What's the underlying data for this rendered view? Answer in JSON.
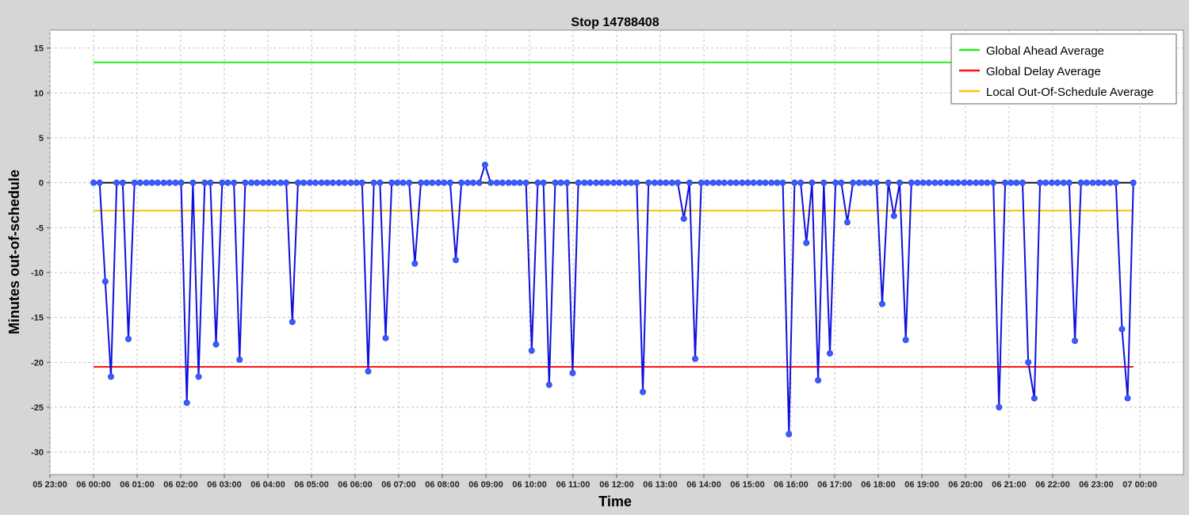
{
  "chart_data": {
    "type": "line",
    "title": "Stop 14788408",
    "xlabel": "Time",
    "ylabel": "Minutes out-of-schedule",
    "ylim": [
      -32.5,
      17
    ],
    "y_ticks": [
      15,
      10,
      5,
      0,
      -5,
      -10,
      -15,
      -20,
      -25,
      -30
    ],
    "y_tick_labels": [
      "15",
      "10",
      "5",
      "0",
      "-5",
      "-10",
      "-15",
      "-20",
      "-25",
      "-30"
    ],
    "x_range_hours": [
      -1.0,
      25.0
    ],
    "x_ticks": [
      "05 23:00",
      "06 00:00",
      "06 01:00",
      "06 02:00",
      "06 03:00",
      "06 04:00",
      "06 05:00",
      "06 06:00",
      "06 07:00",
      "06 08:00",
      "06 09:00",
      "06 10:00",
      "06 11:00",
      "06 12:00",
      "06 13:00",
      "06 14:00",
      "06 15:00",
      "06 16:00",
      "06 17:00",
      "06 18:00",
      "06 19:00",
      "06 20:00",
      "06 21:00",
      "06 22:00",
      "06 23:00",
      "07 00:00"
    ],
    "grid": true,
    "legend_position": "top-right",
    "legend": [
      {
        "name": "Global Ahead Average",
        "color": "#22ee22"
      },
      {
        "name": "Global Delay Average",
        "color": "#ff1111"
      },
      {
        "name": "Local Out-Of-Schedule Average",
        "color": "#ffc000"
      }
    ],
    "reference_lines": {
      "global_ahead_average": 13.4,
      "global_delay_average": -20.5,
      "local_out_of_schedule_average": -3.1,
      "baseline": 0
    },
    "series": [
      {
        "color": "#1010dd",
        "marker_color": "#3a5cff",
        "points": [
          [
            0.0,
            0
          ],
          [
            0.14,
            0
          ],
          [
            0.27,
            -11
          ],
          [
            0.4,
            -21.6
          ],
          [
            0.53,
            0
          ],
          [
            0.67,
            0
          ],
          [
            0.8,
            -17.4
          ],
          [
            0.94,
            0
          ],
          [
            1.07,
            0
          ],
          [
            1.21,
            0
          ],
          [
            1.34,
            0
          ],
          [
            1.47,
            0
          ],
          [
            1.61,
            0
          ],
          [
            1.74,
            0
          ],
          [
            1.88,
            0
          ],
          [
            2.01,
            0
          ],
          [
            2.14,
            -24.5
          ],
          [
            2.28,
            0
          ],
          [
            2.41,
            -21.6
          ],
          [
            2.55,
            0
          ],
          [
            2.68,
            0
          ],
          [
            2.81,
            -18
          ],
          [
            2.95,
            0
          ],
          [
            3.08,
            0
          ],
          [
            3.22,
            0
          ],
          [
            3.35,
            -19.7
          ],
          [
            3.48,
            0
          ],
          [
            3.62,
            0
          ],
          [
            3.75,
            0
          ],
          [
            3.89,
            0
          ],
          [
            4.02,
            0
          ],
          [
            4.15,
            0
          ],
          [
            4.29,
            0
          ],
          [
            4.42,
            0
          ],
          [
            4.56,
            -15.5
          ],
          [
            4.69,
            0
          ],
          [
            4.82,
            0
          ],
          [
            4.96,
            0
          ],
          [
            5.09,
            0
          ],
          [
            5.23,
            0
          ],
          [
            5.36,
            0
          ],
          [
            5.49,
            0
          ],
          [
            5.63,
            0
          ],
          [
            5.76,
            0
          ],
          [
            5.9,
            0
          ],
          [
            6.03,
            0
          ],
          [
            6.16,
            0
          ],
          [
            6.3,
            -21
          ],
          [
            6.43,
            0
          ],
          [
            6.57,
            0
          ],
          [
            6.7,
            -17.3
          ],
          [
            6.84,
            0
          ],
          [
            6.97,
            0
          ],
          [
            7.1,
            0
          ],
          [
            7.24,
            0
          ],
          [
            7.37,
            -9
          ],
          [
            7.51,
            0
          ],
          [
            7.64,
            0
          ],
          [
            7.77,
            0
          ],
          [
            7.91,
            0
          ],
          [
            8.04,
            0
          ],
          [
            8.18,
            0
          ],
          [
            8.31,
            -8.6
          ],
          [
            8.44,
            0
          ],
          [
            8.58,
            0
          ],
          [
            8.71,
            0
          ],
          [
            8.85,
            0
          ],
          [
            8.98,
            2
          ],
          [
            9.11,
            0
          ],
          [
            9.25,
            0
          ],
          [
            9.38,
            0
          ],
          [
            9.52,
            0
          ],
          [
            9.65,
            0
          ],
          [
            9.78,
            0
          ],
          [
            9.92,
            0
          ],
          [
            10.05,
            -18.7
          ],
          [
            10.19,
            0
          ],
          [
            10.32,
            0
          ],
          [
            10.45,
            -22.5
          ],
          [
            10.59,
            0
          ],
          [
            10.72,
            0
          ],
          [
            10.86,
            0
          ],
          [
            10.99,
            -21.2
          ],
          [
            11.12,
            0
          ],
          [
            11.26,
            0
          ],
          [
            11.39,
            0
          ],
          [
            11.53,
            0
          ],
          [
            11.66,
            0
          ],
          [
            11.79,
            0
          ],
          [
            11.93,
            0
          ],
          [
            12.06,
            0
          ],
          [
            12.2,
            0
          ],
          [
            12.33,
            0
          ],
          [
            12.46,
            0
          ],
          [
            12.6,
            -23.3
          ],
          [
            12.73,
            0
          ],
          [
            12.87,
            0
          ],
          [
            13.0,
            0
          ],
          [
            13.13,
            0
          ],
          [
            13.27,
            0
          ],
          [
            13.4,
            0
          ],
          [
            13.54,
            -4
          ],
          [
            13.67,
            0
          ],
          [
            13.8,
            -19.6
          ],
          [
            13.94,
            0
          ],
          [
            14.07,
            0
          ],
          [
            14.21,
            0
          ],
          [
            14.34,
            0
          ],
          [
            14.47,
            0
          ],
          [
            14.61,
            0
          ],
          [
            14.74,
            0
          ],
          [
            14.88,
            0
          ],
          [
            15.01,
            0
          ],
          [
            15.14,
            0
          ],
          [
            15.28,
            0
          ],
          [
            15.41,
            0
          ],
          [
            15.55,
            0
          ],
          [
            15.68,
            0
          ],
          [
            15.81,
            0
          ],
          [
            15.95,
            -28
          ],
          [
            16.08,
            0
          ],
          [
            16.22,
            0
          ],
          [
            16.35,
            -6.7
          ],
          [
            16.48,
            0
          ],
          [
            16.62,
            -22
          ],
          [
            16.75,
            0
          ],
          [
            16.89,
            -19
          ],
          [
            17.02,
            0
          ],
          [
            17.15,
            0
          ],
          [
            17.29,
            -4.4
          ],
          [
            17.42,
            0
          ],
          [
            17.56,
            0
          ],
          [
            17.69,
            0
          ],
          [
            17.82,
            0
          ],
          [
            17.96,
            0
          ],
          [
            18.09,
            -13.5
          ],
          [
            18.23,
            0
          ],
          [
            18.36,
            -3.7
          ],
          [
            18.49,
            0
          ],
          [
            18.63,
            -17.5
          ],
          [
            18.76,
            0
          ],
          [
            18.9,
            0
          ],
          [
            19.03,
            0
          ],
          [
            19.16,
            0
          ],
          [
            19.3,
            0
          ],
          [
            19.43,
            0
          ],
          [
            19.57,
            0
          ],
          [
            19.7,
            0
          ],
          [
            19.83,
            0
          ],
          [
            19.97,
            0
          ],
          [
            20.1,
            0
          ],
          [
            20.24,
            0
          ],
          [
            20.37,
            0
          ],
          [
            20.5,
            0
          ],
          [
            20.64,
            0
          ],
          [
            20.77,
            -25
          ],
          [
            20.91,
            0
          ],
          [
            21.04,
            0
          ],
          [
            21.17,
            0
          ],
          [
            21.31,
            0
          ],
          [
            21.44,
            -20
          ],
          [
            21.58,
            -24
          ],
          [
            21.71,
            0
          ],
          [
            21.84,
            0
          ],
          [
            21.98,
            0
          ],
          [
            22.11,
            0
          ],
          [
            22.25,
            0
          ],
          [
            22.38,
            0
          ],
          [
            22.51,
            -17.6
          ],
          [
            22.65,
            0
          ],
          [
            22.78,
            0
          ],
          [
            22.92,
            0
          ],
          [
            23.05,
            0
          ],
          [
            23.18,
            0
          ],
          [
            23.32,
            0
          ],
          [
            23.45,
            0
          ],
          [
            23.59,
            -16.3
          ],
          [
            23.72,
            -24
          ],
          [
            23.85,
            0
          ]
        ]
      }
    ]
  }
}
